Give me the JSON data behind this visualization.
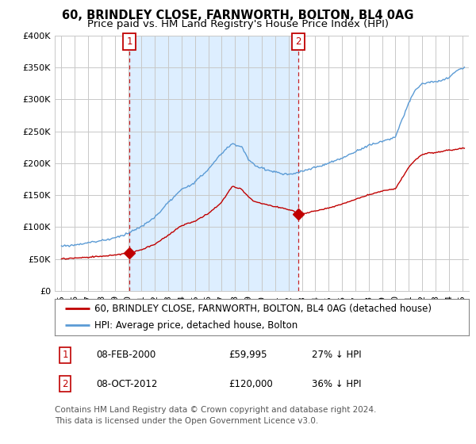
{
  "title": "60, BRINDLEY CLOSE, FARNWORTH, BOLTON, BL4 0AG",
  "subtitle": "Price paid vs. HM Land Registry's House Price Index (HPI)",
  "ylim": [
    0,
    400000
  ],
  "yticks": [
    0,
    50000,
    100000,
    150000,
    200000,
    250000,
    300000,
    350000,
    400000
  ],
  "ytick_labels": [
    "£0",
    "£50K",
    "£100K",
    "£150K",
    "£200K",
    "£250K",
    "£300K",
    "£350K",
    "£400K"
  ],
  "hpi_color": "#5b9bd5",
  "price_color": "#c00000",
  "vline_color": "#c00000",
  "shade_color": "#ddeeff",
  "background_color": "#ffffff",
  "grid_color": "#c8c8c8",
  "sale1_date": 2000.08,
  "sale1_price": 59995,
  "sale2_date": 2012.75,
  "sale2_price": 120000,
  "legend_line1": "60, BRINDLEY CLOSE, FARNWORTH, BOLTON, BL4 0AG (detached house)",
  "legend_line2": "HPI: Average price, detached house, Bolton",
  "table_row1": [
    "1",
    "08-FEB-2000",
    "£59,995",
    "27% ↓ HPI"
  ],
  "table_row2": [
    "2",
    "08-OCT-2012",
    "£120,000",
    "36% ↓ HPI"
  ],
  "footer": "Contains HM Land Registry data © Crown copyright and database right 2024.\nThis data is licensed under the Open Government Licence v3.0.",
  "title_fontsize": 10.5,
  "subtitle_fontsize": 9.5,
  "tick_fontsize": 8,
  "legend_fontsize": 8.5,
  "table_fontsize": 8.5,
  "footer_fontsize": 7.5
}
